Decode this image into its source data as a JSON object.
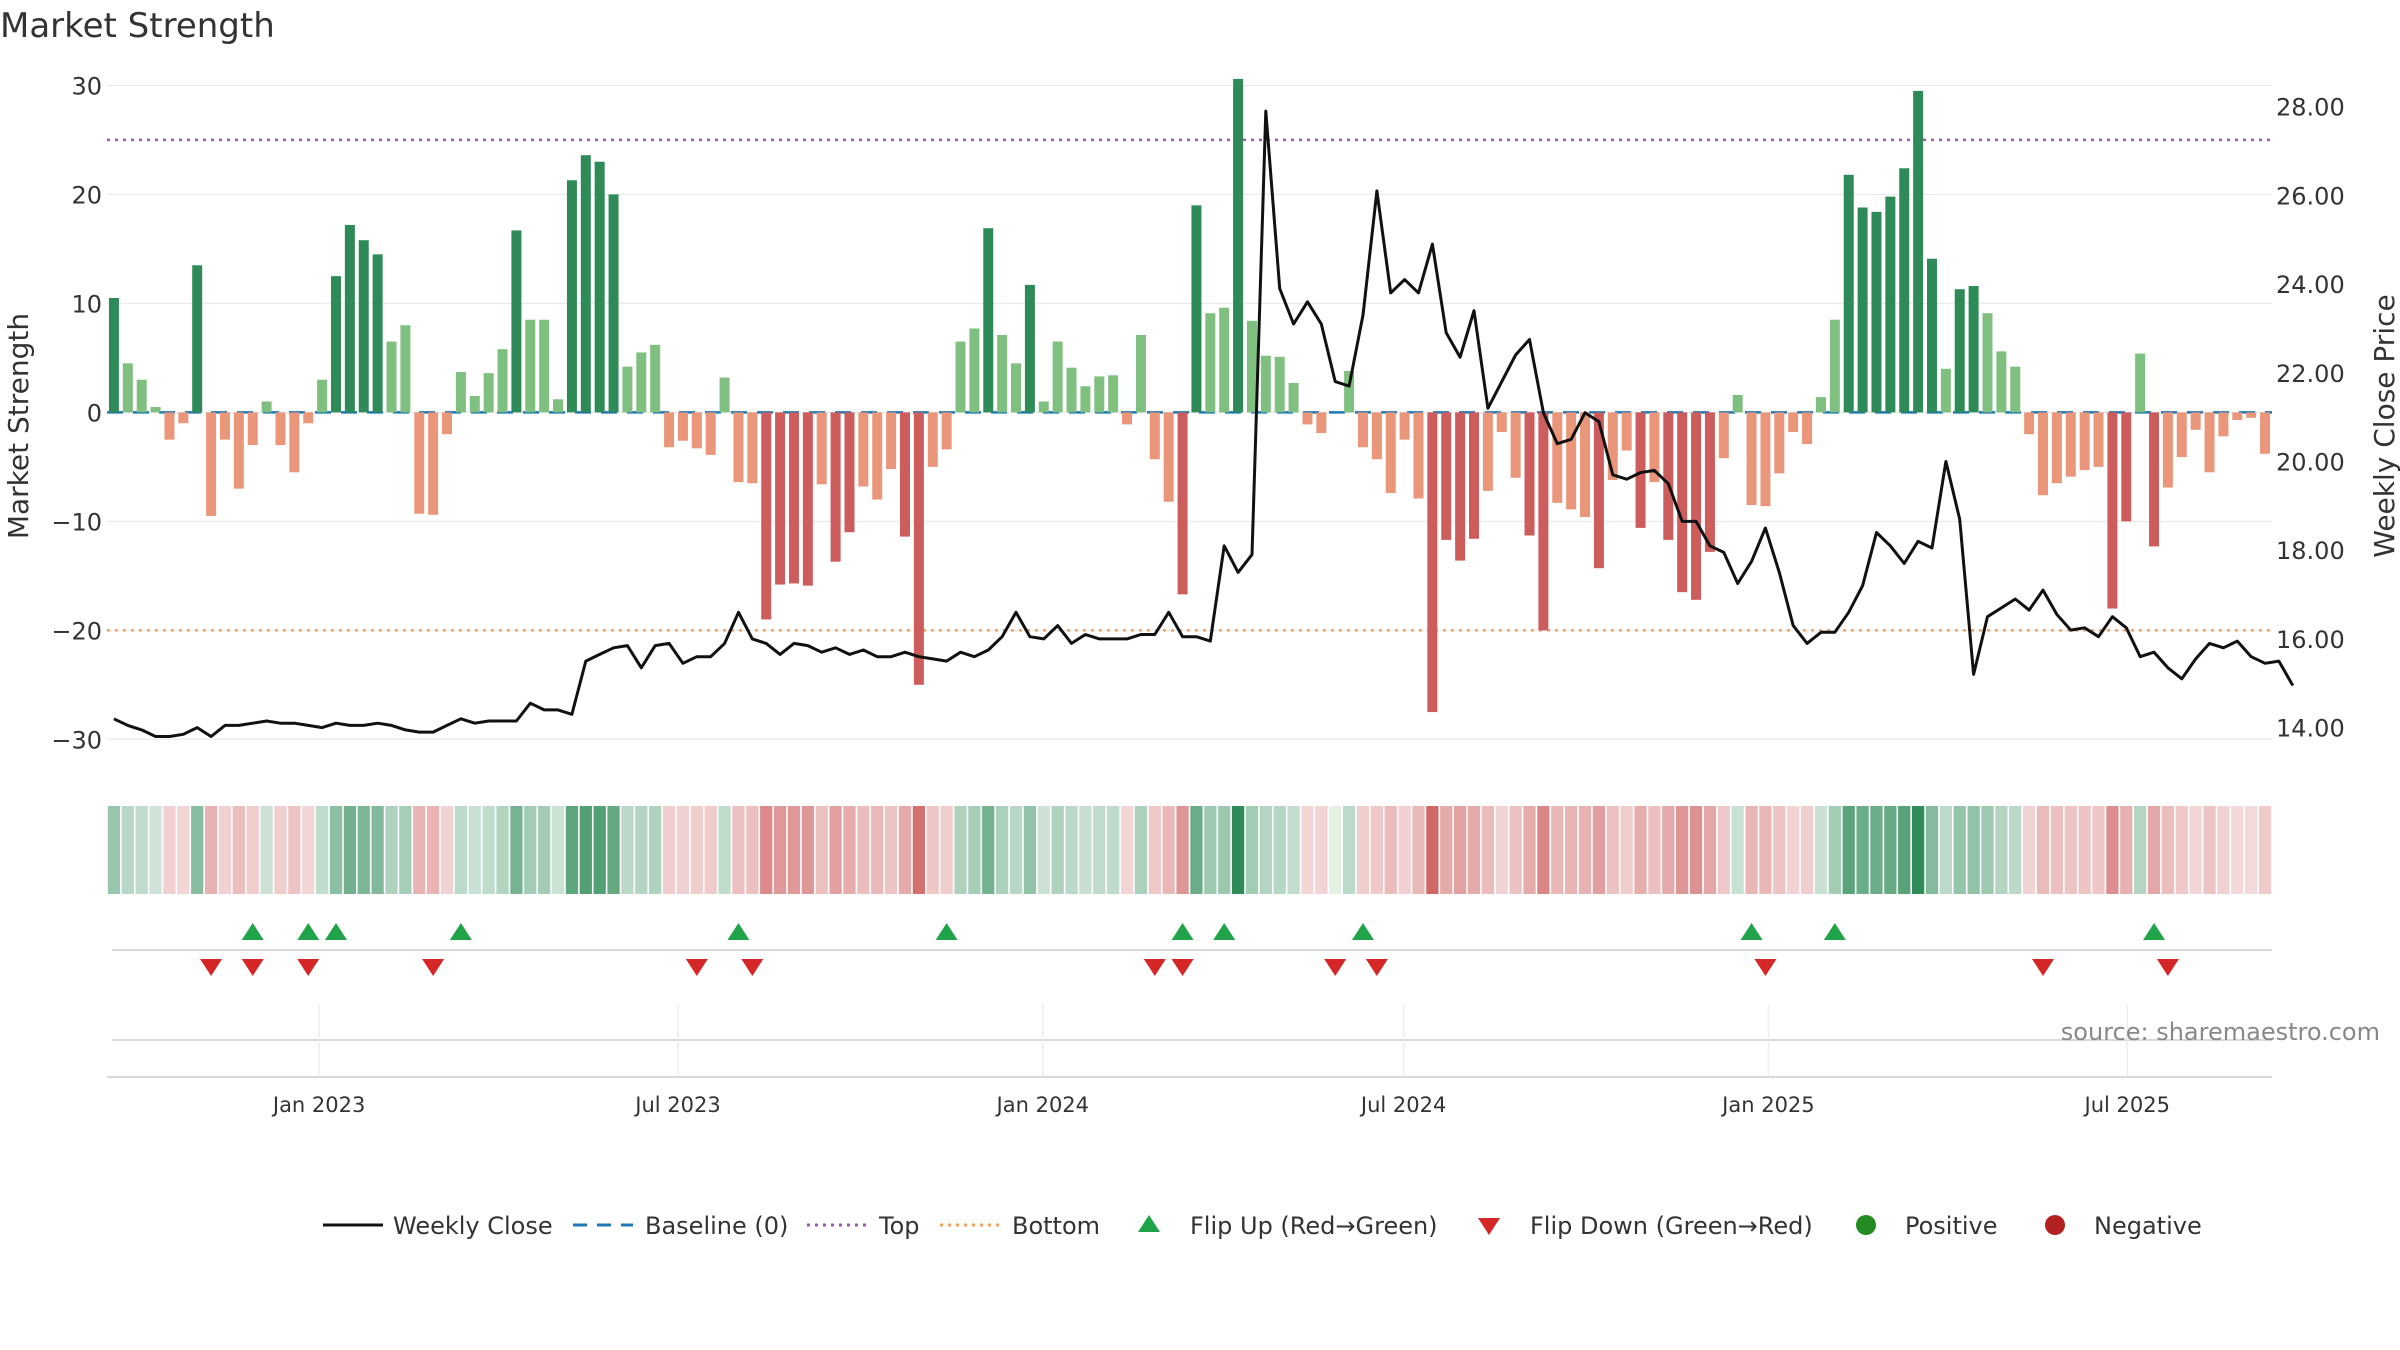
{
  "chart_data": {
    "type": "bar",
    "title": "Market Strength",
    "ylabel_left": "Market Strength",
    "ylabel_right": "Weekly Close Price",
    "source": "source: sharemaestro.com",
    "x_start": "2022-09-16",
    "x_step_days": 7,
    "left_axis": {
      "ylim": [
        -33,
        30.5
      ],
      "ticks": [
        30,
        20,
        10,
        0,
        -10,
        -20,
        -30
      ],
      "tick_labels": [
        "30",
        "20",
        "10",
        "0",
        "−10",
        "−20",
        "−30"
      ]
    },
    "right_axis": {
      "ylim": [
        13.0,
        28.6
      ],
      "ticks": [
        14,
        16,
        18,
        20,
        22,
        24,
        26,
        28
      ],
      "tick_labels": [
        "14.00",
        "16.00",
        "18.00",
        "20.00",
        "22.00",
        "24.00",
        "26.00",
        "28.00"
      ]
    },
    "x_ticks": [
      {
        "label": "Jan 2023",
        "date": "2023-01-01"
      },
      {
        "label": "Jul 2023",
        "date": "2023-07-01"
      },
      {
        "label": "Jan 2024",
        "date": "2024-01-01"
      },
      {
        "label": "Jul 2024",
        "date": "2024-07-01"
      },
      {
        "label": "Jan 2025",
        "date": "2025-01-01"
      },
      {
        "label": "Jul 2025",
        "date": "2025-07-01"
      }
    ],
    "reference_lines": {
      "top": 25,
      "bottom": -20,
      "baseline": 0
    },
    "colors": {
      "pos_strong": "#2e8b57",
      "pos_weak": "#7fbf7f",
      "neg_strong": "#cd5c5c",
      "neg_weak": "#e9967a",
      "close_line": "#111111",
      "baseline": "#1f77b4",
      "top_line": "#9b59b6",
      "bottom_line": "#f4a261",
      "flip_up": "#21a34a",
      "flip_down": "#d62728",
      "positive": "#228b22",
      "negative": "#b22222"
    },
    "series": [
      {
        "name": "Market Strength",
        "values": [
          10.5,
          4.5,
          3,
          0.5,
          -2.5,
          -1,
          13.5,
          -9.5,
          -2.5,
          -7,
          -3,
          1,
          -3,
          -5.5,
          -1,
          3,
          12.5,
          17.2,
          15.8,
          14.5,
          6.5,
          8,
          -9.3,
          -9.4,
          -2,
          3.7,
          1.5,
          3.6,
          5.8,
          16.7,
          8.5,
          8.5,
          1.2,
          21.3,
          23.6,
          23,
          20,
          4.2,
          5.5,
          6.2,
          -3.2,
          -2.6,
          -3.3,
          -3.9,
          3.2,
          -6.4,
          -6.5,
          -19,
          -15.8,
          -15.7,
          -15.9,
          -6.6,
          -13.7,
          -11,
          -6.8,
          -8,
          -5.2,
          -11.4,
          -25,
          -5,
          -3.4,
          6.5,
          7.7,
          16.9,
          7.1,
          4.5,
          11.7,
          1,
          6.5,
          4.1,
          2.4,
          3.3,
          3.4,
          -1.1,
          7.1,
          -4.3,
          -8.2,
          -16.7,
          19,
          9.1,
          9.6,
          30.6,
          8.4,
          5.2,
          5.1,
          2.7,
          -1.1,
          -1.9,
          0,
          3.8,
          -3.2,
          -4.3,
          -7.4,
          -2.5,
          -7.9,
          -27.5,
          -11.7,
          -13.6,
          -11.6,
          -7.2,
          -1.8,
          -6,
          -11.3,
          -20,
          -8.3,
          -8.9,
          -9.6,
          -14.3,
          -6.2,
          -3.5,
          -10.6,
          -6.4,
          -11.7,
          -16.5,
          -17.2,
          -12.8,
          -4.2,
          1.6,
          -8.5,
          -8.6,
          -5.6,
          -1.8,
          -2.9,
          1.4,
          8.5,
          21.8,
          18.8,
          18.4,
          19.8,
          22.4,
          29.5,
          14.1,
          4,
          11.3,
          11.6,
          9.1,
          5.6,
          4.2,
          -2,
          -7.6,
          -6.5,
          -5.9,
          -5.3,
          -5,
          -18,
          -10,
          5.4,
          -12.3,
          -6.9,
          -4.1,
          -1.6,
          -5.5,
          -2.2,
          -0.7,
          -0.5,
          -3.8
        ]
      },
      {
        "name": "Weekly Close",
        "values": [
          14.2,
          14.05,
          13.95,
          13.8,
          13.8,
          13.85,
          14,
          13.8,
          14.05,
          14.05,
          14.1,
          14.15,
          14.1,
          14.1,
          14.05,
          14,
          14.1,
          14.05,
          14.05,
          14.1,
          14.05,
          13.95,
          13.9,
          13.9,
          14.05,
          14.2,
          14.1,
          14.15,
          14.15,
          14.15,
          14.55,
          14.4,
          14.4,
          14.3,
          15.5,
          15.65,
          15.8,
          15.85,
          15.35,
          15.85,
          15.9,
          15.45,
          15.6,
          15.6,
          15.9,
          16.6,
          16,
          15.9,
          15.65,
          15.9,
          15.85,
          15.7,
          15.8,
          15.65,
          15.75,
          15.6,
          15.6,
          15.7,
          15.6,
          15.55,
          15.5,
          15.7,
          15.6,
          15.75,
          16.05,
          16.6,
          16.05,
          16,
          16.3,
          15.9,
          16.1,
          16,
          16,
          16,
          16.1,
          16.1,
          16.6,
          16.05,
          16.05,
          15.95,
          18.1,
          17.5,
          17.9,
          27.9,
          23.9,
          23.1,
          23.6,
          23.1,
          21.8,
          21.7,
          23.3,
          26.1,
          23.8,
          24.1,
          23.8,
          24.9,
          22.9,
          22.35,
          23.4,
          21.2,
          21.8,
          22.4,
          22.75,
          21.1,
          20.4,
          20.5,
          21.1,
          20.9,
          19.7,
          19.6,
          19.75,
          19.8,
          19.5,
          18.65,
          18.65,
          18.1,
          17.95,
          17.25,
          17.75,
          18.5,
          17.5,
          16.3,
          15.9,
          16.15,
          16.15,
          16.6,
          17.2,
          18.4,
          18.1,
          17.7,
          18.2,
          18.05,
          20,
          18.7,
          15.2,
          16.5,
          16.7,
          16.9,
          16.65,
          17.1,
          16.55,
          16.2,
          16.25,
          16.05,
          16.5,
          16.25,
          15.6,
          15.7,
          15.35,
          15.1,
          15.55,
          15.9,
          15.8,
          15.95,
          15.6,
          15.45,
          15.5,
          14.95
        ]
      }
    ],
    "flip_up_x": [
      "2022-11-25",
      "2022-12-23",
      "2023-01-06",
      "2023-03-10",
      "2023-07-28",
      "2023-11-10",
      "2024-03-08",
      "2024-03-29",
      "2024-06-07",
      "2024-12-20",
      "2025-01-31",
      "2025-07-11"
    ],
    "flip_down_x": [
      "2022-11-04",
      "2022-11-25",
      "2022-12-23",
      "2023-02-24",
      "2023-07-07",
      "2023-08-04",
      "2024-02-23",
      "2024-03-08",
      "2024-05-24",
      "2024-06-14",
      "2024-12-27",
      "2025-05-16",
      "2025-07-18"
    ],
    "legend": [
      {
        "label": "Weekly Close",
        "kind": "line"
      },
      {
        "label": "Baseline (0)",
        "kind": "dash"
      },
      {
        "label": "Top",
        "kind": "dot-top"
      },
      {
        "label": "Bottom",
        "kind": "dot-bottom"
      },
      {
        "label": "Flip Up (Red→Green)",
        "kind": "tri-up"
      },
      {
        "label": "Flip Down (Green→Red)",
        "kind": "tri-down"
      },
      {
        "label": "Positive",
        "kind": "dot-pos"
      },
      {
        "label": "Negative",
        "kind": "dot-neg"
      }
    ]
  }
}
